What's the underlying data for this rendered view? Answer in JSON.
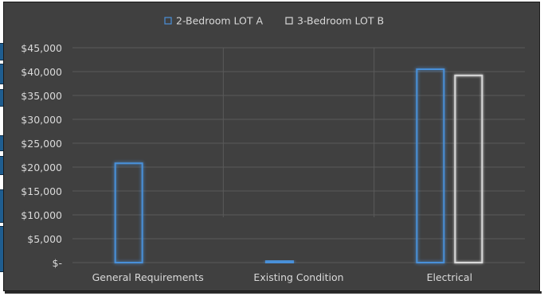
{
  "chart_data": {
    "type": "bar",
    "title": "",
    "xlabel": "",
    "ylabel": "",
    "categories": [
      "General Requirements",
      "Existing Condition",
      "Electrical"
    ],
    "series": [
      {
        "name": "2-Bedroom LOT A",
        "values": [
          20800,
          300,
          40500
        ]
      },
      {
        "name": "3-Bedroom LOT B",
        "values": [
          0,
          0,
          39200
        ]
      }
    ],
    "ylim": [
      0,
      45000
    ],
    "yticks": [
      0,
      5000,
      10000,
      15000,
      20000,
      25000,
      30000,
      35000,
      40000,
      45000
    ],
    "ytick_labels": [
      "$-",
      "$5,000",
      "$10,000",
      "$15,000",
      "$20,000",
      "$25,000",
      "$30,000",
      "$35,000",
      "$40,000",
      "$45,000"
    ],
    "grid": true,
    "legend_position": "top-center"
  },
  "colors": {
    "background": "#404040",
    "gridline": "#5a5a5a",
    "text": "#d9d9d9",
    "series_a_outline": "#4a90d9",
    "series_a_glow": "#2f6fb3",
    "series_b_outline": "#d9d9d9",
    "series_b_glow": "#888888"
  }
}
